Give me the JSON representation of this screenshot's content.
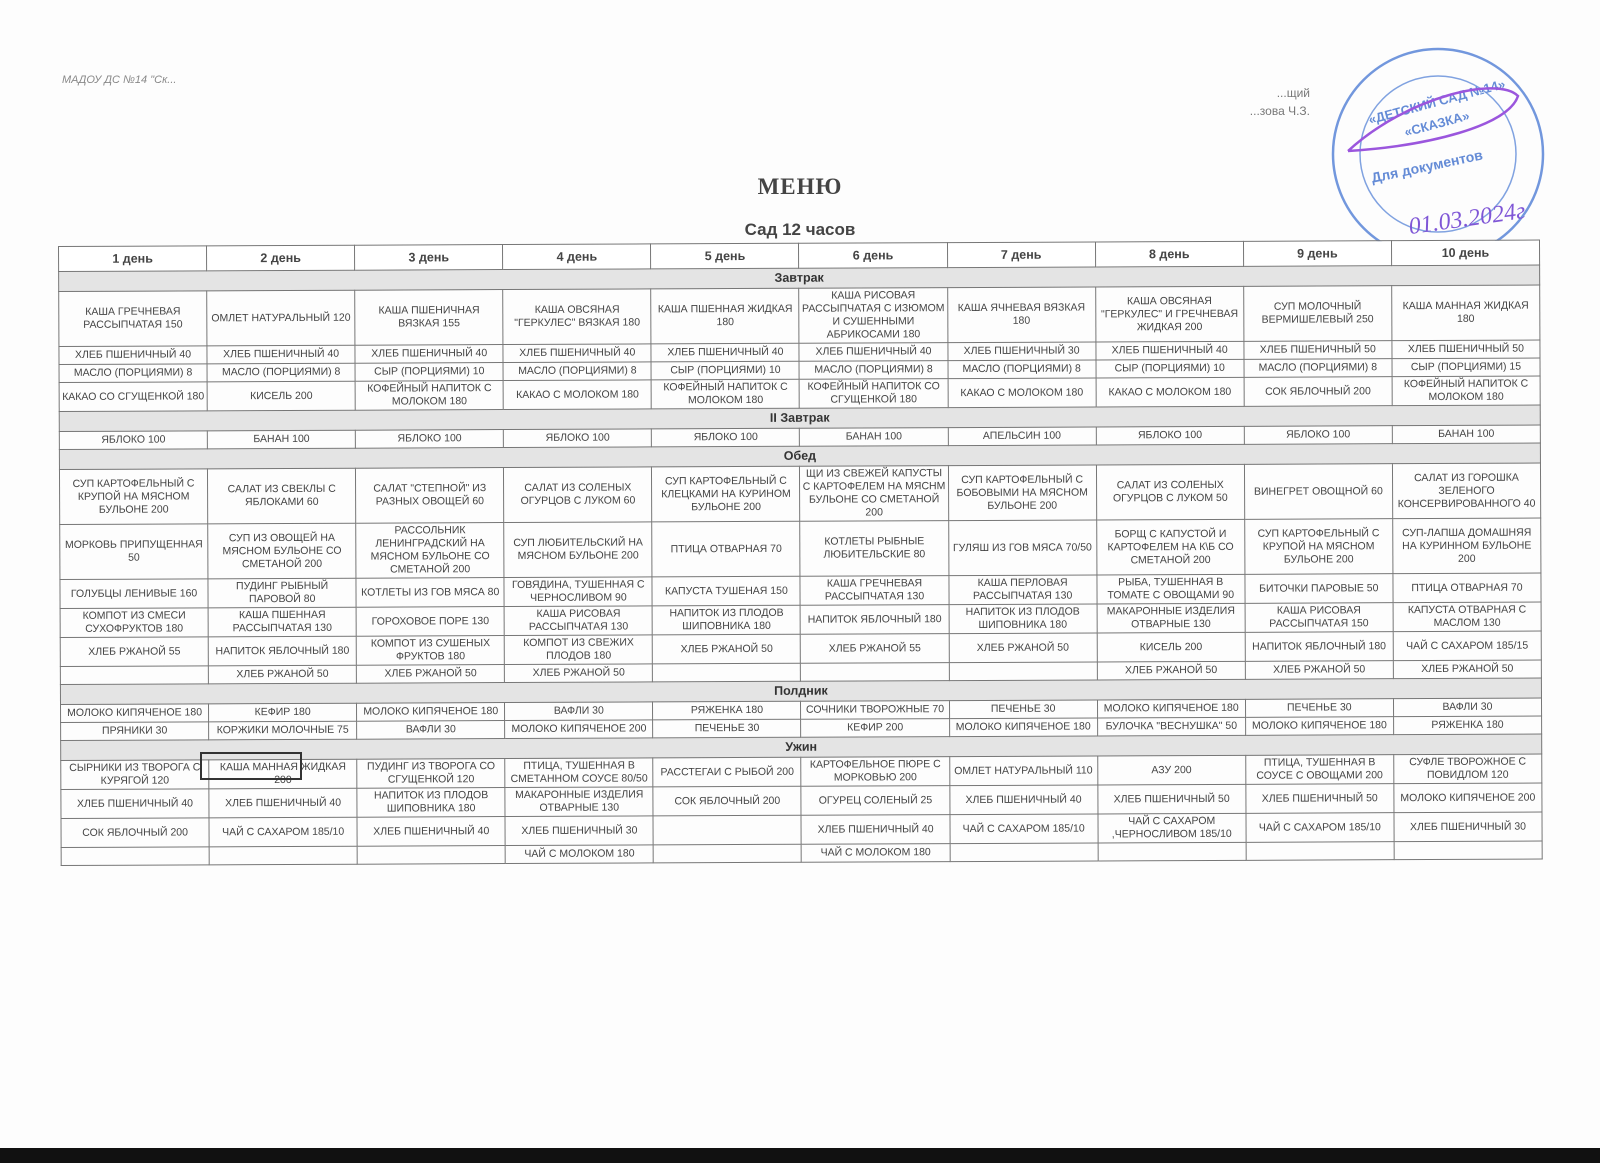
{
  "header": {
    "org": "МАДОУ ДС №14 \"Ск...",
    "approve_lines": [
      "...щий",
      "...зова Ч.З."
    ]
  },
  "stamp": {
    "text": "«ДЕТСКИЙ САД №14» «СКАЗКА» Для документов ОГРН ИНН",
    "date": "01.03.2024г",
    "color": "#3a6fd0"
  },
  "title": "МЕНЮ",
  "subtitle": "Сад 12 часов",
  "days": [
    "1 день",
    "2 день",
    "3 день",
    "4 день",
    "5 день",
    "6 день",
    "7 день",
    "8 день",
    "9 день",
    "10 день"
  ],
  "sections": [
    {
      "name": "Завтрак",
      "rows": [
        [
          "КАША ГРЕЧНЕВАЯ РАССЫПЧАТАЯ 150",
          "ОМЛЕТ НАТУРАЛЬНЫЙ 120",
          "КАША ПШЕНИЧНАЯ ВЯЗКАЯ 155",
          "КАША ОВСЯНАЯ \"ГЕРКУЛЕС\" ВЯЗКАЯ 180",
          "КАША ПШЕННАЯ ЖИДКАЯ 180",
          "КАША РИСОВАЯ РАССЫПЧАТАЯ С ИЗЮМОМ И СУШЕННЫМИ АБРИКОСАМИ 180",
          "КАША ЯЧНЕВАЯ ВЯЗКАЯ 180",
          "КАША ОВСЯНАЯ \"ГЕРКУЛЕС\" И ГРЕЧНЕВАЯ ЖИДКАЯ 200",
          "СУП МОЛОЧНЫЙ ВЕРМИШЕЛЕВЫЙ 250",
          "КАША МАННАЯ ЖИДКАЯ 180"
        ],
        [
          "ХЛЕБ ПШЕНИЧНЫЙ 40",
          "ХЛЕБ ПШЕНИЧНЫЙ 40",
          "ХЛЕБ ПШЕНИЧНЫЙ 40",
          "ХЛЕБ ПШЕНИЧНЫЙ 40",
          "ХЛЕБ ПШЕНИЧНЫЙ 40",
          "ХЛЕБ ПШЕНИЧНЫЙ 40",
          "ХЛЕБ ПШЕНИЧНЫЙ 30",
          "ХЛЕБ ПШЕНИЧНЫЙ 40",
          "ХЛЕБ ПШЕНИЧНЫЙ 50",
          "ХЛЕБ ПШЕНИЧНЫЙ 50"
        ],
        [
          "МАСЛО (ПОРЦИЯМИ) 8",
          "МАСЛО (ПОРЦИЯМИ) 8",
          "СЫР (ПОРЦИЯМИ) 10",
          "МАСЛО (ПОРЦИЯМИ) 8",
          "СЫР (ПОРЦИЯМИ) 10",
          "МАСЛО (ПОРЦИЯМИ) 8",
          "МАСЛО (ПОРЦИЯМИ) 8",
          "СЫР (ПОРЦИЯМИ) 10",
          "МАСЛО (ПОРЦИЯМИ) 8",
          "СЫР (ПОРЦИЯМИ) 15"
        ],
        [
          "КАКАО СО СГУЩЕНКОЙ 180",
          "КИСЕЛЬ 200",
          "КОФЕЙНЫЙ НАПИТОК С МОЛОКОМ 180",
          "КАКАО С МОЛОКОМ 180",
          "КОФЕЙНЫЙ НАПИТОК С МОЛОКОМ 180",
          "КОФЕЙНЫЙ НАПИТОК СО СГУЩЕНКОЙ 180",
          "КАКАО С МОЛОКОМ 180",
          "КАКАО С МОЛОКОМ 180",
          "СОК ЯБЛОЧНЫЙ 200",
          "КОФЕЙНЫЙ НАПИТОК С МОЛОКОМ 180"
        ]
      ]
    },
    {
      "name": "II Завтрак",
      "rows": [
        [
          "ЯБЛОКО 100",
          "БАНАН 100",
          "ЯБЛОКО 100",
          "ЯБЛОКО 100",
          "ЯБЛОКО 100",
          "БАНАН 100",
          "АПЕЛЬСИН 100",
          "ЯБЛОКО 100",
          "ЯБЛОКО 100",
          "БАНАН 100"
        ]
      ]
    },
    {
      "name": "Обед",
      "rows": [
        [
          "СУП КАРТОФЕЛЬНЫЙ С КРУПОЙ НА МЯСНОМ БУЛЬОНЕ 200",
          "САЛАТ ИЗ СВЕКЛЫ С ЯБЛОКАМИ 60",
          "САЛАТ \"СТЕПНОЙ\" ИЗ РАЗНЫХ ОВОЩЕЙ 60",
          "САЛАТ ИЗ СОЛЕНЫХ ОГУРЦОВ С ЛУКОМ 60",
          "СУП КАРТОФЕЛЬНЫЙ С КЛЕЦКАМИ НА КУРИНОМ БУЛЬОНЕ 200",
          "ЩИ ИЗ СВЕЖЕЙ КАПУСТЫ С КАРТОФЕЛЕМ НА МЯСНМ БУЛЬОНЕ СО СМЕТАНОЙ 200",
          "СУП КАРТОФЕЛЬНЫЙ С БОБОВЫМИ НА МЯСНОМ БУЛЬОНЕ 200",
          "САЛАТ ИЗ СОЛЕНЫХ ОГУРЦОВ С ЛУКОМ 50",
          "ВИНЕГРЕТ ОВОЩНОЙ 60",
          "САЛАТ ИЗ ГОРОШКА ЗЕЛЕНОГО КОНСЕРВИРОВАННОГО 40"
        ],
        [
          "МОРКОВЬ ПРИПУЩЕННАЯ 50",
          "СУП ИЗ ОВОЩЕЙ НА МЯСНОМ БУЛЬОНЕ СО СМЕТАНОЙ 200",
          "РАССОЛЬНИК ЛЕНИНГРАДСКИЙ НА МЯСНОМ БУЛЬОНЕ СО СМЕТАНОЙ 200",
          "СУП ЛЮБИТЕЛЬСКИЙ НА МЯСНОМ БУЛЬОНЕ 200",
          "ПТИЦА ОТВАРНАЯ 70",
          "КОТЛЕТЫ РЫБНЫЕ ЛЮБИТЕЛЬСКИЕ 80",
          "ГУЛЯШ ИЗ ГОВ МЯСА 70/50",
          "БОРЩ С КАПУСТОЙ И КАРТОФЕЛЕМ НА К\\Б СО СМЕТАНОЙ 200",
          "СУП КАРТОФЕЛЬНЫЙ С КРУПОЙ НА МЯСНОМ БУЛЬОНЕ 200",
          "СУП-ЛАПША ДОМАШНЯЯ НА КУРИННОМ БУЛЬОНЕ 200"
        ],
        [
          "ГОЛУБЦЫ ЛЕНИВЫЕ 160",
          "ПУДИНГ РЫБНЫЙ ПАРОВОЙ 80",
          "КОТЛЕТЫ ИЗ ГОВ МЯСА 80",
          "ГОВЯДИНА, ТУШЕННАЯ С ЧЕРНОСЛИВОМ 90",
          "КАПУСТА ТУШЕНАЯ 150",
          "КАША ГРЕЧНЕВАЯ РАССЫПЧАТАЯ 130",
          "КАША ПЕРЛОВАЯ РАССЫПЧАТАЯ 130",
          "РЫБА, ТУШЕННАЯ В ТОМАТЕ С ОВОЩАМИ 90",
          "БИТОЧКИ ПАРОВЫЕ 50",
          "ПТИЦА ОТВАРНАЯ 70"
        ],
        [
          "КОМПОТ ИЗ СМЕСИ СУХОФРУКТОВ 180",
          "КАША ПШЕННАЯ РАССЫПЧАТАЯ 130",
          "ГОРОХОВОЕ ПОРЕ 130",
          "КАША РИСОВАЯ РАССЫПЧАТАЯ 130",
          "НАПИТОК ИЗ ПЛОДОВ ШИПОВНИКА 180",
          "НАПИТОК ЯБЛОЧНЫЙ 180",
          "НАПИТОК ИЗ ПЛОДОВ ШИПОВНИКА 180",
          "МАКАРОННЫЕ ИЗДЕЛИЯ ОТВАРНЫЕ 130",
          "КАША РИСОВАЯ РАССЫПЧАТАЯ 150",
          "КАПУСТА ОТВАРНАЯ С МАСЛОМ 130"
        ],
        [
          "ХЛЕБ РЖАНОЙ 55",
          "НАПИТОК ЯБЛОЧНЫЙ 180",
          "КОМПОТ ИЗ СУШЕНЫХ ФРУКТОВ 180",
          "КОМПОТ ИЗ СВЕЖИХ ПЛОДОВ 180",
          "ХЛЕБ РЖАНОЙ 50",
          "ХЛЕБ РЖАНОЙ 55",
          "ХЛЕБ РЖАНОЙ 50",
          "КИСЕЛЬ 200",
          "НАПИТОК ЯБЛОЧНЫЙ 180",
          "ЧАЙ С САХАРОМ 185/15"
        ],
        [
          "",
          "ХЛЕБ РЖАНОЙ 50",
          "ХЛЕБ РЖАНОЙ 50",
          "ХЛЕБ РЖАНОЙ 50",
          "",
          "",
          "",
          "ХЛЕБ РЖАНОЙ 50",
          "ХЛЕБ РЖАНОЙ 50",
          "ХЛЕБ РЖАНОЙ 50"
        ]
      ]
    },
    {
      "name": "Полдник",
      "rows": [
        [
          "МОЛОКО КИПЯЧЕНОЕ 180",
          "КЕФИР 180",
          "МОЛОКО КИПЯЧЕНОЕ 180",
          "ВАФЛИ 30",
          "РЯЖЕНКА 180",
          "СОЧНИКИ ТВОРОЖНЫЕ 70",
          "ПЕЧЕНЬЕ 30",
          "МОЛОКО КИПЯЧЕНОЕ 180",
          "ПЕЧЕНЬЕ 30",
          "ВАФЛИ 30"
        ],
        [
          "ПРЯНИКИ 30",
          "КОРЖИКИ МОЛОЧНЫЕ 75",
          "ВАФЛИ 30",
          "МОЛОКО КИПЯЧЕНОЕ 200",
          "ПЕЧЕНЬЕ 30",
          "КЕФИР 200",
          "МОЛОКО КИПЯЧЕНОЕ 180",
          "БУЛОЧКА \"ВЕСНУШКА\" 50",
          "МОЛОКО КИПЯЧЕНОЕ 180",
          "РЯЖЕНКА 180"
        ]
      ]
    },
    {
      "name": "Ужин",
      "rows": [
        [
          "СЫРНИКИ ИЗ ТВОРОГА С КУРЯГОЙ 120",
          "КАША МАННАЯ ЖИДКАЯ 200",
          "ПУДИНГ ИЗ ТВОРОГА СО СГУЩЕНКОЙ 120",
          "ПТИЦА, ТУШЕННАЯ В СМЕТАННОМ СОУСЕ 80/50",
          "РАССТЕГАИ С РЫБОЙ 200",
          "КАРТОФЕЛЬНОЕ ПЮРЕ С МОРКОВЬЮ 200",
          "ОМЛЕТ НАТУРАЛЬНЫЙ 110",
          "АЗУ 200",
          "ПТИЦА, ТУШЕННАЯ В СОУСЕ С ОВОЩАМИ 200",
          "СУФЛЕ ТВОРОЖНОЕ С ПОВИДЛОМ 120"
        ],
        [
          "ХЛЕБ ПШЕНИЧНЫЙ 40",
          "ХЛЕБ ПШЕНИЧНЫЙ 40",
          "НАПИТОК ИЗ ПЛОДОВ ШИПОВНИКА 180",
          "МАКАРОННЫЕ ИЗДЕЛИЯ ОТВАРНЫЕ 130",
          "СОК ЯБЛОЧНЫЙ 200",
          "ОГУРЕЦ СОЛЕНЫЙ 25",
          "ХЛЕБ ПШЕНИЧНЫЙ 40",
          "ХЛЕБ ПШЕНИЧНЫЙ 50",
          "ХЛЕБ ПШЕНИЧНЫЙ 50",
          "МОЛОКО КИПЯЧЕНОЕ 200"
        ],
        [
          "СОК ЯБЛОЧНЫЙ 200",
          "ЧАЙ С САХАРОМ 185/10",
          "ХЛЕБ ПШЕНИЧНЫЙ 40",
          "ХЛЕБ ПШЕНИЧНЫЙ 30",
          "",
          "ХЛЕБ ПШЕНИЧНЫЙ 40",
          "ЧАЙ С САХАРОМ 185/10",
          "ЧАЙ С САХАРОМ ,ЧЕРНОСЛИВОМ 185/10",
          "ЧАЙ С САХАРОМ 185/10",
          "ХЛЕБ ПШЕНИЧНЫЙ 30"
        ],
        [
          "",
          "",
          "",
          "ЧАЙ С МОЛОКОМ  180",
          "",
          "ЧАЙ С МОЛОКОМ  180",
          "",
          "",
          "",
          ""
        ]
      ]
    }
  ]
}
